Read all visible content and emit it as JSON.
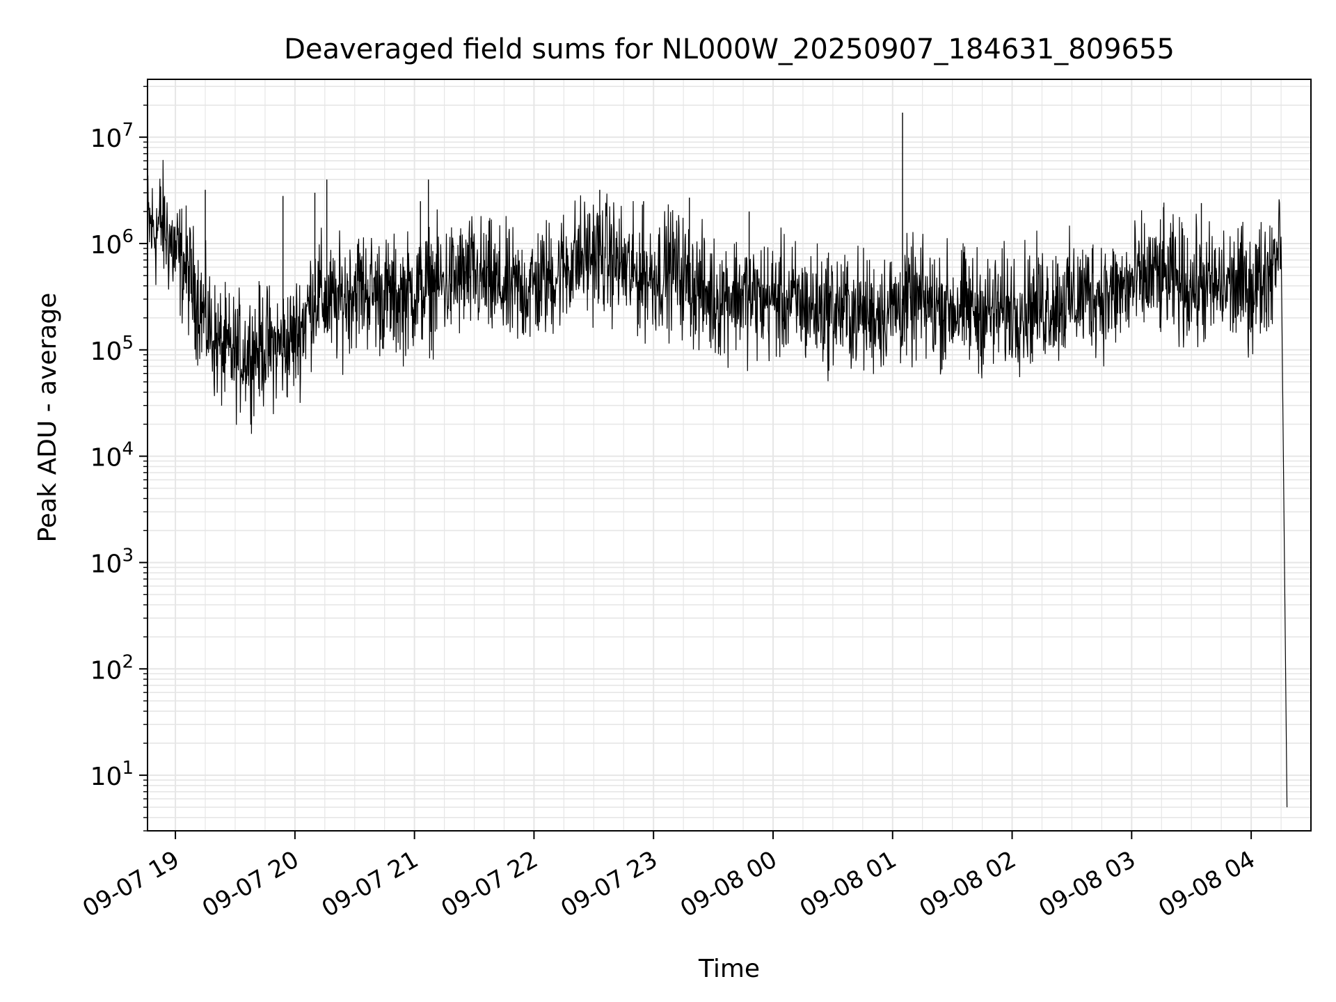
{
  "chart_data": {
    "type": "line",
    "title": "Deaveraged field sums for NL000W_20250907_184631_809655",
    "xlabel": "Time",
    "ylabel": "Peak ADU - average",
    "yscale": "log",
    "ylim": [
      3,
      35000000
    ],
    "xlim": [
      "2025-09-07 18:46",
      "2025-09-08 04:30"
    ],
    "grid": "major and minor, both axes",
    "line_color": "#000000",
    "grid_color": "#e6e6e6",
    "x_ticks": [
      {
        "t": "2025-09-07 19:00",
        "label": "09-07 19"
      },
      {
        "t": "2025-09-07 20:00",
        "label": "09-07 20"
      },
      {
        "t": "2025-09-07 21:00",
        "label": "09-07 21"
      },
      {
        "t": "2025-09-07 22:00",
        "label": "09-07 22"
      },
      {
        "t": "2025-09-07 23:00",
        "label": "09-07 23"
      },
      {
        "t": "2025-09-08 00:00",
        "label": "09-08 00"
      },
      {
        "t": "2025-09-08 01:00",
        "label": "09-08 01"
      },
      {
        "t": "2025-09-08 02:00",
        "label": "09-08 02"
      },
      {
        "t": "2025-09-08 03:00",
        "label": "09-08 03"
      },
      {
        "t": "2025-09-08 04:00",
        "label": "09-08 04"
      }
    ],
    "y_ticks": [
      {
        "value": 10,
        "base": "10",
        "exp": "1"
      },
      {
        "value": 100,
        "base": "10",
        "exp": "2"
      },
      {
        "value": 1000,
        "base": "10",
        "exp": "3"
      },
      {
        "value": 10000,
        "base": "10",
        "exp": "4"
      },
      {
        "value": 100000,
        "base": "10",
        "exp": "5"
      },
      {
        "value": 1000000,
        "base": "10",
        "exp": "6"
      },
      {
        "value": 10000000,
        "base": "10",
        "exp": "7"
      }
    ],
    "series": [
      {
        "x": [
          "2025-09-07 18:46",
          "2025-09-07 18:50",
          "2025-09-07 18:53",
          "2025-09-07 18:56",
          "2025-09-07 19:00",
          "2025-09-07 19:05",
          "2025-09-07 19:10",
          "2025-09-07 19:15",
          "2025-09-07 19:20",
          "2025-09-07 19:25",
          "2025-09-07 19:30",
          "2025-09-07 19:35",
          "2025-09-07 19:40",
          "2025-09-07 19:45",
          "2025-09-07 19:50",
          "2025-09-07 19:55",
          "2025-09-07 20:00",
          "2025-09-07 20:05",
          "2025-09-07 20:10",
          "2025-09-07 20:15",
          "2025-09-07 20:20",
          "2025-09-07 20:30",
          "2025-09-07 20:40",
          "2025-09-07 20:50",
          "2025-09-07 21:00",
          "2025-09-07 21:10",
          "2025-09-07 21:20",
          "2025-09-07 21:30",
          "2025-09-07 21:40",
          "2025-09-07 21:50",
          "2025-09-07 22:00",
          "2025-09-07 22:10",
          "2025-09-07 22:20",
          "2025-09-07 22:30",
          "2025-09-07 22:40",
          "2025-09-07 22:50",
          "2025-09-07 23:00",
          "2025-09-07 23:10",
          "2025-09-07 23:20",
          "2025-09-07 23:30",
          "2025-09-07 23:40",
          "2025-09-07 23:50",
          "2025-09-08 00:00",
          "2025-09-08 00:10",
          "2025-09-08 00:20",
          "2025-09-08 00:30",
          "2025-09-08 00:40",
          "2025-09-08 00:50",
          "2025-09-08 01:00",
          "2025-09-08 01:10",
          "2025-09-08 01:20",
          "2025-09-08 01:30",
          "2025-09-08 01:40",
          "2025-09-08 01:50",
          "2025-09-08 02:00",
          "2025-09-08 02:10",
          "2025-09-08 02:20",
          "2025-09-08 02:30",
          "2025-09-08 02:40",
          "2025-09-08 02:50",
          "2025-09-08 03:00",
          "2025-09-08 03:10",
          "2025-09-08 03:20",
          "2025-09-08 03:30",
          "2025-09-08 03:40",
          "2025-09-08 03:50",
          "2025-09-08 04:00",
          "2025-09-08 04:05",
          "2025-09-08 04:10",
          "2025-09-08 04:15",
          "2025-09-08 04:18"
        ],
        "y": [
          1500000,
          1300000,
          1600000,
          1200000,
          800000,
          600000,
          350000,
          200000,
          120000,
          95000,
          90000,
          95000,
          100000,
          110000,
          105000,
          110000,
          130000,
          200000,
          350000,
          300000,
          250000,
          400000,
          350000,
          300000,
          350000,
          400000,
          450000,
          500000,
          400000,
          350000,
          400000,
          500000,
          700000,
          800000,
          700000,
          500000,
          500000,
          600000,
          400000,
          300000,
          350000,
          300000,
          300000,
          280000,
          250000,
          250000,
          230000,
          220000,
          250000,
          280000,
          260000,
          250000,
          240000,
          220000,
          250000,
          260000,
          280000,
          300000,
          350000,
          320000,
          400000,
          500000,
          450000,
          400000,
          380000,
          400000,
          380000,
          450000,
          600000,
          1400000,
          5
        ]
      }
    ],
    "spikes": [
      {
        "x": "2025-09-07 19:15",
        "y": 3200000
      },
      {
        "x": "2025-09-07 19:54",
        "y": 2800000
      },
      {
        "x": "2025-09-07 20:10",
        "y": 3000000
      },
      {
        "x": "2025-09-07 20:16",
        "y": 4000000
      },
      {
        "x": "2025-09-07 21:07",
        "y": 4000000
      },
      {
        "x": "2025-09-07 21:03",
        "y": 2500000
      },
      {
        "x": "2025-09-07 22:33",
        "y": 3200000
      },
      {
        "x": "2025-09-07 22:55",
        "y": 2500000
      },
      {
        "x": "2025-09-07 23:18",
        "y": 2700000
      },
      {
        "x": "2025-09-07 23:48",
        "y": 2000000
      },
      {
        "x": "2025-09-08 01:05",
        "y": 17000000
      },
      {
        "x": "2025-09-08 03:16",
        "y": 2200000
      },
      {
        "x": "2025-09-08 03:35",
        "y": 2400000
      }
    ]
  }
}
